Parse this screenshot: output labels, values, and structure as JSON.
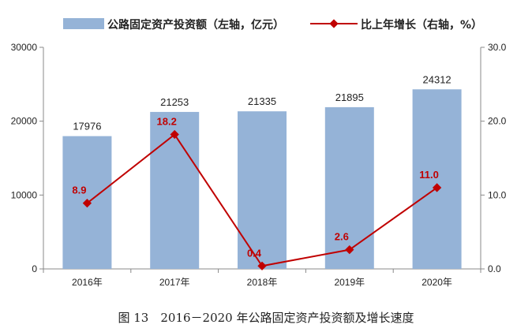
{
  "chart_data": {
    "type": "bar",
    "categories": [
      "2016年",
      "2017年",
      "2018年",
      "2019年",
      "2020年"
    ],
    "series": [
      {
        "name": "公路固定资产投资额（左轴，亿元）",
        "type": "bar",
        "axis": "left",
        "values": [
          17976,
          21253,
          21335,
          21895,
          24312
        ],
        "labels": [
          "17976",
          "21253",
          "21335",
          "21895",
          "24312"
        ],
        "color": "#95b3d7"
      },
      {
        "name": "比上年增长（右轴，%）",
        "type": "line",
        "axis": "right",
        "values": [
          8.9,
          18.2,
          0.4,
          2.6,
          11.0
        ],
        "labels": [
          "8.9",
          "18.2",
          "0.4",
          "2.6",
          "11.0"
        ],
        "color": "#c00000",
        "marker": "diamond"
      }
    ],
    "ylim_left": [
      0,
      30000
    ],
    "yticks_left": [
      "0",
      "10000",
      "20000",
      "30000"
    ],
    "ylim_right": [
      0,
      30
    ],
    "yticks_right": [
      "0.0",
      "10.0",
      "20.0",
      "30.0"
    ],
    "grid": false,
    "legend_position": "top",
    "caption": "图 13　2016－2020 年公路固定资产投资额及增长速度"
  }
}
